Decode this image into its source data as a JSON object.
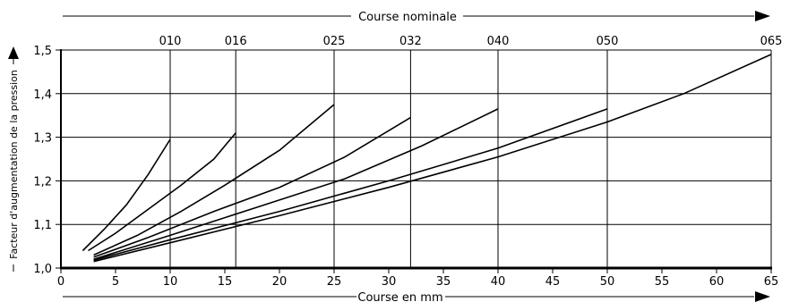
{
  "chart_data": {
    "type": "line",
    "top_axis_title": "Course nominale",
    "xlabel": "Course en mm",
    "ylabel": "Facteur d'augmentation de la pression",
    "xlim": [
      0,
      65
    ],
    "ylim": [
      1.0,
      1.5
    ],
    "x_ticks": [
      0,
      5,
      10,
      15,
      20,
      25,
      30,
      35,
      40,
      45,
      50,
      55,
      60,
      65
    ],
    "y_ticks": [
      "1,0",
      "1,1",
      "1,2",
      "1,3",
      "1,4",
      "1,5"
    ],
    "y_tick_values": [
      1.0,
      1.1,
      1.2,
      1.3,
      1.4,
      1.5
    ],
    "vertical_grid_x": [
      10,
      16,
      25,
      32,
      40,
      50,
      65
    ],
    "grid": true,
    "series": [
      {
        "name": "010",
        "points": [
          [
            2,
            1.04
          ],
          [
            4,
            1.09
          ],
          [
            6,
            1.145
          ],
          [
            8,
            1.215
          ],
          [
            10,
            1.295
          ]
        ]
      },
      {
        "name": "016",
        "points": [
          [
            2.5,
            1.04
          ],
          [
            5,
            1.08
          ],
          [
            8,
            1.135
          ],
          [
            11,
            1.19
          ],
          [
            14,
            1.25
          ],
          [
            16,
            1.31
          ]
        ]
      },
      {
        "name": "025",
        "points": [
          [
            3,
            1.03
          ],
          [
            7,
            1.075
          ],
          [
            11,
            1.13
          ],
          [
            15,
            1.19
          ],
          [
            20,
            1.27
          ],
          [
            25,
            1.375
          ]
        ]
      },
      {
        "name": "032",
        "points": [
          [
            3,
            1.025
          ],
          [
            8,
            1.07
          ],
          [
            14,
            1.13
          ],
          [
            20,
            1.185
          ],
          [
            26,
            1.255
          ],
          [
            32,
            1.345
          ]
        ]
      },
      {
        "name": "040",
        "points": [
          [
            3,
            1.02
          ],
          [
            10,
            1.075
          ],
          [
            18,
            1.14
          ],
          [
            26,
            1.205
          ],
          [
            33,
            1.28
          ],
          [
            40,
            1.365
          ]
        ]
      },
      {
        "name": "050",
        "points": [
          [
            3,
            1.018
          ],
          [
            10,
            1.065
          ],
          [
            20,
            1.13
          ],
          [
            30,
            1.2
          ],
          [
            40,
            1.275
          ],
          [
            50,
            1.365
          ]
        ]
      },
      {
        "name": "065",
        "points": [
          [
            3,
            1.015
          ],
          [
            10,
            1.058
          ],
          [
            20,
            1.12
          ],
          [
            30,
            1.185
          ],
          [
            40,
            1.255
          ],
          [
            50,
            1.335
          ],
          [
            57,
            1.4
          ],
          [
            65,
            1.49
          ]
        ]
      }
    ]
  }
}
